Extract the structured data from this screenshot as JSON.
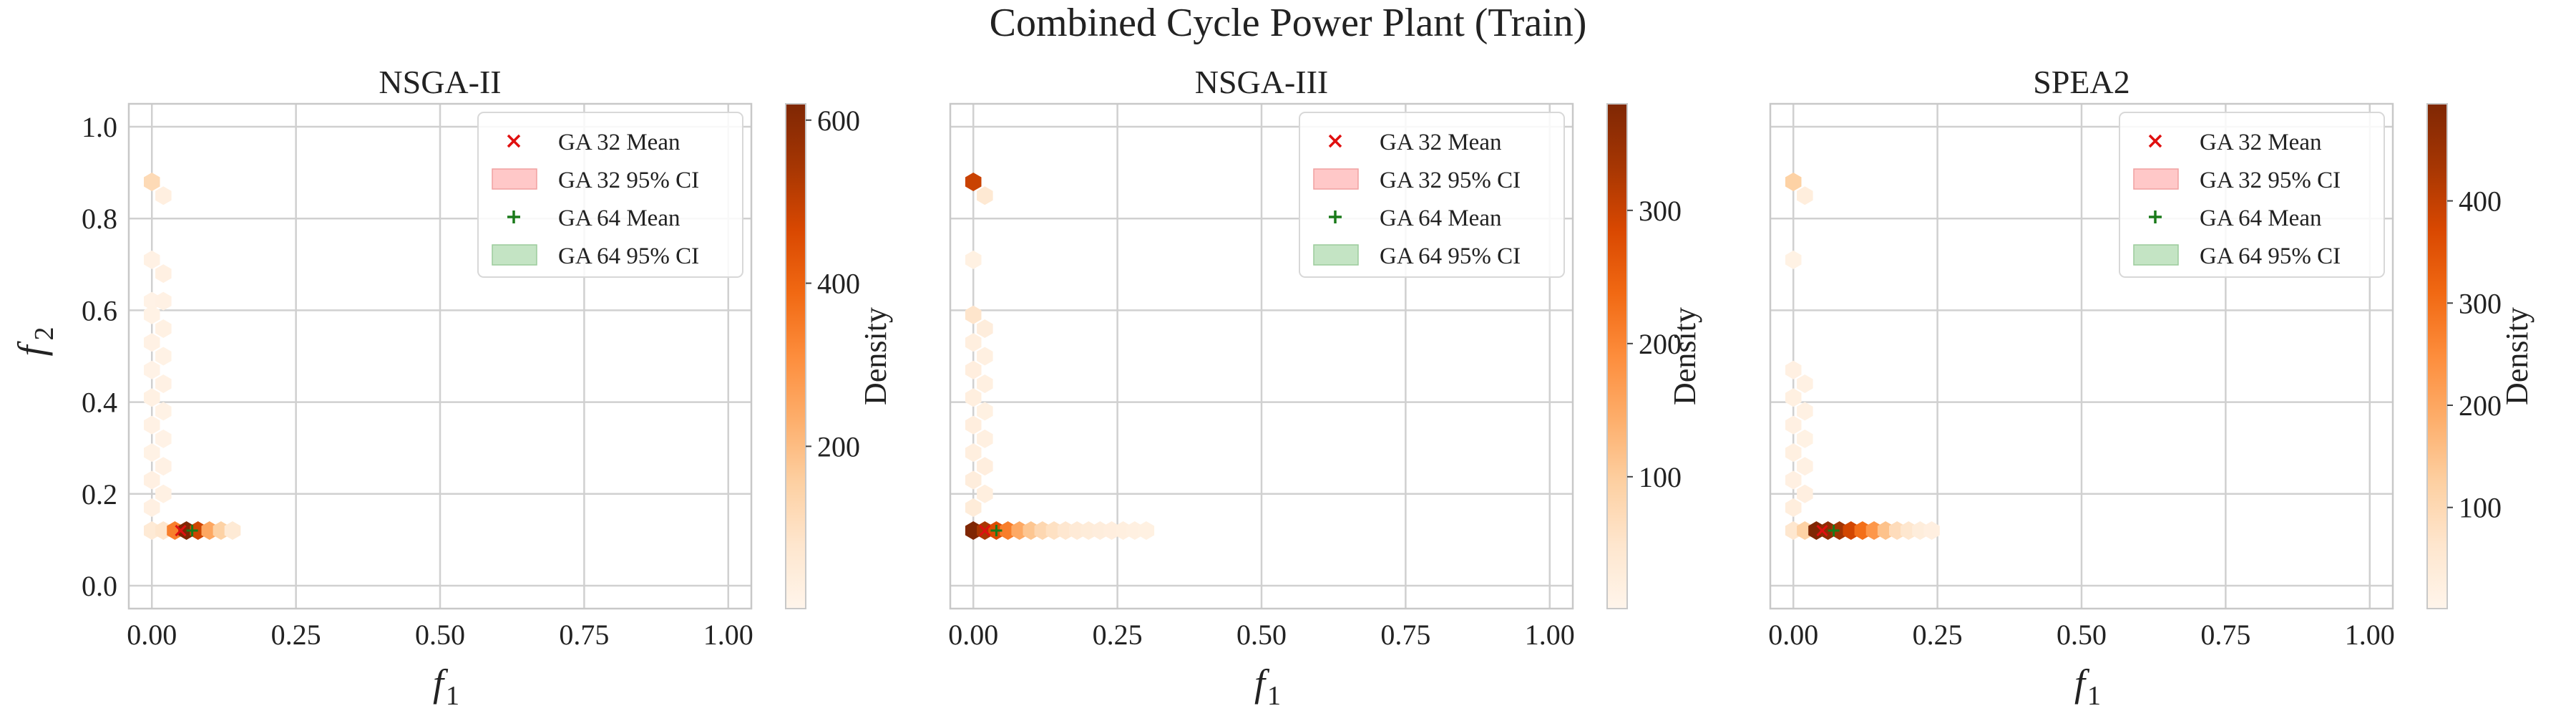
{
  "figure": {
    "title": "Combined Cycle Power Plant (Train)"
  },
  "colors": {
    "grid": "#d0d0d0",
    "axis": "#c8c8c8",
    "ga32": "#e01010",
    "ga32_ci": "#ffc8c8",
    "ga64": "#1a7a1a",
    "ga64_ci": "#c4e4c4",
    "colormap": [
      "#fff5eb",
      "#fee6ce",
      "#fdd0a2",
      "#fdae6b",
      "#fd8d3c",
      "#f16913",
      "#d94801",
      "#a63603",
      "#7f2704"
    ]
  },
  "chart_data": [
    {
      "type": "heatmap",
      "title": "NSGA-II",
      "xlabel": "f",
      "xlabel_sub": "1",
      "ylabel": "f",
      "ylabel_sub": "2",
      "xlim": [
        -0.04,
        1.04
      ],
      "ylim": [
        -0.05,
        1.05
      ],
      "xticks": [
        0.0,
        0.25,
        0.5,
        0.75,
        1.0
      ],
      "xtick_labels": [
        "0.00",
        "0.25",
        "0.50",
        "0.75",
        "1.00"
      ],
      "yticks": [
        0.0,
        0.2,
        0.4,
        0.6,
        0.8,
        1.0
      ],
      "ytick_labels": [
        "0.0",
        "0.2",
        "0.4",
        "0.6",
        "0.8",
        "1.0"
      ],
      "show_yticks": true,
      "grid": true,
      "legend_position": "top-right",
      "legend": [
        "GA 32 Mean",
        "GA 32 95% CI",
        "GA 64 Mean",
        "GA 64 95% CI"
      ],
      "colorbar": {
        "label": "Density",
        "min": 1,
        "max": 620,
        "ticks": [
          200,
          400,
          600
        ],
        "tick_labels": [
          "200",
          "400",
          "600"
        ]
      },
      "cells": [
        {
          "x": 0.0,
          "y": 0.88,
          "v": 120
        },
        {
          "x": 0.02,
          "y": 0.85,
          "v": 30
        },
        {
          "x": 0.0,
          "y": 0.71,
          "v": 20
        },
        {
          "x": 0.02,
          "y": 0.68,
          "v": 25
        },
        {
          "x": 0.0,
          "y": 0.62,
          "v": 15
        },
        {
          "x": 0.02,
          "y": 0.62,
          "v": 20
        },
        {
          "x": 0.0,
          "y": 0.59,
          "v": 18
        },
        {
          "x": 0.02,
          "y": 0.56,
          "v": 22
        },
        {
          "x": 0.0,
          "y": 0.53,
          "v": 20
        },
        {
          "x": 0.02,
          "y": 0.5,
          "v": 18
        },
        {
          "x": 0.0,
          "y": 0.47,
          "v": 15
        },
        {
          "x": 0.02,
          "y": 0.44,
          "v": 20
        },
        {
          "x": 0.0,
          "y": 0.41,
          "v": 22
        },
        {
          "x": 0.02,
          "y": 0.38,
          "v": 18
        },
        {
          "x": 0.0,
          "y": 0.35,
          "v": 20
        },
        {
          "x": 0.02,
          "y": 0.32,
          "v": 15
        },
        {
          "x": 0.0,
          "y": 0.29,
          "v": 18
        },
        {
          "x": 0.02,
          "y": 0.26,
          "v": 20
        },
        {
          "x": 0.0,
          "y": 0.23,
          "v": 25
        },
        {
          "x": 0.02,
          "y": 0.2,
          "v": 22
        },
        {
          "x": 0.0,
          "y": 0.17,
          "v": 25
        },
        {
          "x": 0.0,
          "y": 0.12,
          "v": 60
        },
        {
          "x": 0.02,
          "y": 0.12,
          "v": 80
        },
        {
          "x": 0.04,
          "y": 0.12,
          "v": 340
        },
        {
          "x": 0.06,
          "y": 0.12,
          "v": 620
        },
        {
          "x": 0.08,
          "y": 0.12,
          "v": 480
        },
        {
          "x": 0.1,
          "y": 0.12,
          "v": 250
        },
        {
          "x": 0.12,
          "y": 0.12,
          "v": 150
        },
        {
          "x": 0.14,
          "y": 0.12,
          "v": 60
        }
      ],
      "ga32_mean": {
        "x": 0.05,
        "y": 0.12
      },
      "ga64_mean": {
        "x": 0.07,
        "y": 0.12
      }
    },
    {
      "type": "heatmap",
      "title": "NSGA-III",
      "xlabel": "f",
      "xlabel_sub": "1",
      "ylabel": "",
      "ylabel_sub": "",
      "xlim": [
        -0.04,
        1.04
      ],
      "ylim": [
        -0.05,
        1.05
      ],
      "xticks": [
        0.0,
        0.25,
        0.5,
        0.75,
        1.0
      ],
      "xtick_labels": [
        "0.00",
        "0.25",
        "0.50",
        "0.75",
        "1.00"
      ],
      "yticks": [
        0.0,
        0.2,
        0.4,
        0.6,
        0.8,
        1.0
      ],
      "ytick_labels": [],
      "show_yticks": false,
      "grid": true,
      "legend_position": "top-right",
      "legend": [
        "GA 32 Mean",
        "GA 32 95% CI",
        "GA 64 Mean",
        "GA 64 95% CI"
      ],
      "colorbar": {
        "label": "Density",
        "min": 1,
        "max": 380,
        "ticks": [
          100,
          200,
          300
        ],
        "tick_labels": [
          "100",
          "200",
          "300"
        ]
      },
      "cells": [
        {
          "x": 0.0,
          "y": 0.88,
          "v": 300
        },
        {
          "x": 0.02,
          "y": 0.85,
          "v": 40
        },
        {
          "x": 0.0,
          "y": 0.71,
          "v": 15
        },
        {
          "x": 0.0,
          "y": 0.59,
          "v": 50
        },
        {
          "x": 0.02,
          "y": 0.56,
          "v": 25
        },
        {
          "x": 0.0,
          "y": 0.53,
          "v": 20
        },
        {
          "x": 0.02,
          "y": 0.5,
          "v": 18
        },
        {
          "x": 0.0,
          "y": 0.47,
          "v": 22
        },
        {
          "x": 0.02,
          "y": 0.44,
          "v": 18
        },
        {
          "x": 0.0,
          "y": 0.41,
          "v": 20
        },
        {
          "x": 0.02,
          "y": 0.38,
          "v": 15
        },
        {
          "x": 0.0,
          "y": 0.35,
          "v": 22
        },
        {
          "x": 0.02,
          "y": 0.32,
          "v": 18
        },
        {
          "x": 0.0,
          "y": 0.29,
          "v": 20
        },
        {
          "x": 0.02,
          "y": 0.26,
          "v": 22
        },
        {
          "x": 0.0,
          "y": 0.23,
          "v": 25
        },
        {
          "x": 0.02,
          "y": 0.2,
          "v": 20
        },
        {
          "x": 0.0,
          "y": 0.17,
          "v": 30
        },
        {
          "x": 0.0,
          "y": 0.12,
          "v": 380
        },
        {
          "x": 0.02,
          "y": 0.12,
          "v": 330
        },
        {
          "x": 0.04,
          "y": 0.12,
          "v": 280
        },
        {
          "x": 0.06,
          "y": 0.12,
          "v": 210
        },
        {
          "x": 0.08,
          "y": 0.12,
          "v": 150
        },
        {
          "x": 0.1,
          "y": 0.12,
          "v": 110
        },
        {
          "x": 0.12,
          "y": 0.12,
          "v": 80
        },
        {
          "x": 0.14,
          "y": 0.12,
          "v": 60
        },
        {
          "x": 0.16,
          "y": 0.12,
          "v": 45
        },
        {
          "x": 0.18,
          "y": 0.12,
          "v": 35
        },
        {
          "x": 0.2,
          "y": 0.12,
          "v": 30
        },
        {
          "x": 0.22,
          "y": 0.12,
          "v": 25
        },
        {
          "x": 0.24,
          "y": 0.12,
          "v": 22
        },
        {
          "x": 0.26,
          "y": 0.12,
          "v": 20
        },
        {
          "x": 0.28,
          "y": 0.12,
          "v": 18
        },
        {
          "x": 0.3,
          "y": 0.12,
          "v": 15
        }
      ],
      "ga32_mean": {
        "x": 0.02,
        "y": 0.12
      },
      "ga64_mean": {
        "x": 0.04,
        "y": 0.12
      }
    },
    {
      "type": "heatmap",
      "title": "SPEA2",
      "xlabel": "f",
      "xlabel_sub": "1",
      "ylabel": "",
      "ylabel_sub": "",
      "xlim": [
        -0.04,
        1.04
      ],
      "ylim": [
        -0.05,
        1.05
      ],
      "xticks": [
        0.0,
        0.25,
        0.5,
        0.75,
        1.0
      ],
      "xtick_labels": [
        "0.00",
        "0.25",
        "0.50",
        "0.75",
        "1.00"
      ],
      "yticks": [
        0.0,
        0.2,
        0.4,
        0.6,
        0.8,
        1.0
      ],
      "ytick_labels": [],
      "show_yticks": false,
      "grid": true,
      "legend_position": "top-right",
      "legend": [
        "GA 32 Mean",
        "GA 32 95% CI",
        "GA 64 Mean",
        "GA 64 95% CI"
      ],
      "colorbar": {
        "label": "Density",
        "min": 1,
        "max": 495,
        "ticks": [
          100,
          200,
          300,
          400
        ],
        "tick_labels": [
          "100",
          "200",
          "300",
          "400"
        ]
      },
      "cells": [
        {
          "x": 0.0,
          "y": 0.88,
          "v": 120
        },
        {
          "x": 0.02,
          "y": 0.85,
          "v": 30
        },
        {
          "x": 0.0,
          "y": 0.71,
          "v": 15
        },
        {
          "x": 0.0,
          "y": 0.47,
          "v": 20
        },
        {
          "x": 0.02,
          "y": 0.44,
          "v": 18
        },
        {
          "x": 0.0,
          "y": 0.41,
          "v": 22
        },
        {
          "x": 0.02,
          "y": 0.38,
          "v": 18
        },
        {
          "x": 0.0,
          "y": 0.35,
          "v": 20
        },
        {
          "x": 0.02,
          "y": 0.32,
          "v": 15
        },
        {
          "x": 0.0,
          "y": 0.29,
          "v": 22
        },
        {
          "x": 0.02,
          "y": 0.26,
          "v": 18
        },
        {
          "x": 0.0,
          "y": 0.23,
          "v": 20
        },
        {
          "x": 0.02,
          "y": 0.2,
          "v": 25
        },
        {
          "x": 0.0,
          "y": 0.17,
          "v": 30
        },
        {
          "x": 0.0,
          "y": 0.12,
          "v": 60
        },
        {
          "x": 0.02,
          "y": 0.12,
          "v": 120
        },
        {
          "x": 0.04,
          "y": 0.12,
          "v": 495
        },
        {
          "x": 0.06,
          "y": 0.12,
          "v": 470
        },
        {
          "x": 0.08,
          "y": 0.12,
          "v": 440
        },
        {
          "x": 0.1,
          "y": 0.12,
          "v": 380
        },
        {
          "x": 0.12,
          "y": 0.12,
          "v": 300
        },
        {
          "x": 0.14,
          "y": 0.12,
          "v": 230
        },
        {
          "x": 0.16,
          "y": 0.12,
          "v": 150
        },
        {
          "x": 0.18,
          "y": 0.12,
          "v": 90
        },
        {
          "x": 0.2,
          "y": 0.12,
          "v": 60
        },
        {
          "x": 0.22,
          "y": 0.12,
          "v": 35
        },
        {
          "x": 0.24,
          "y": 0.12,
          "v": 25
        }
      ],
      "ga32_mean": {
        "x": 0.05,
        "y": 0.12
      },
      "ga64_mean": {
        "x": 0.07,
        "y": 0.12
      }
    }
  ]
}
